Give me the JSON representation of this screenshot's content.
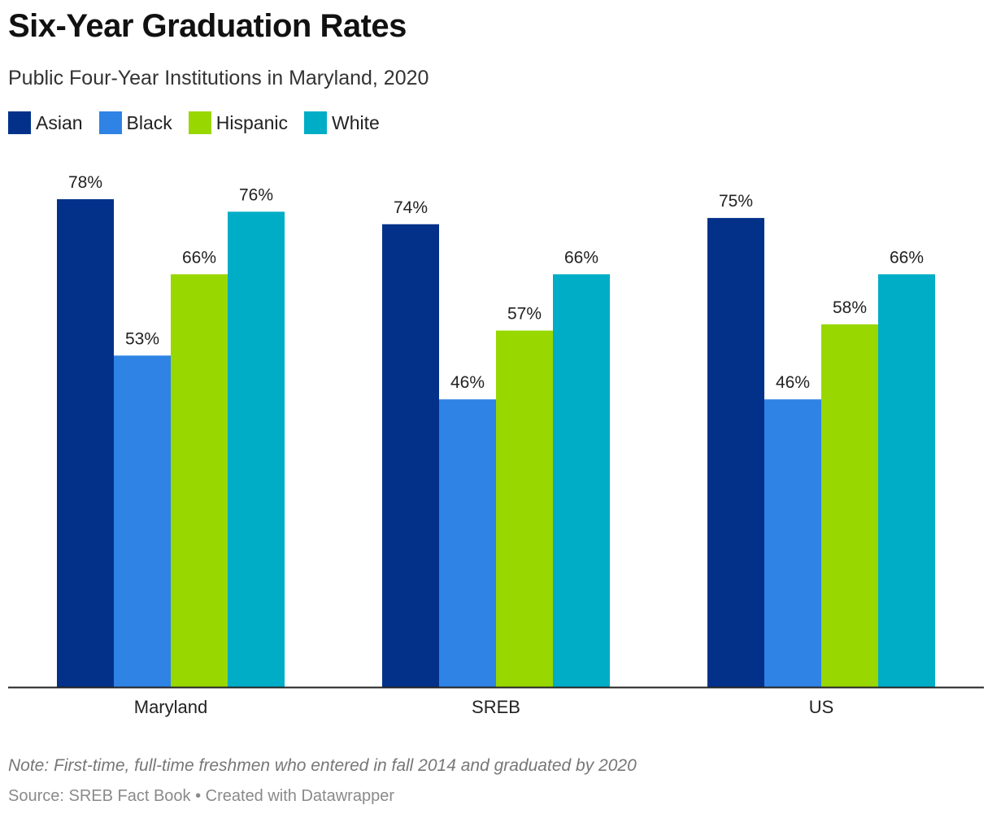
{
  "chart_data": {
    "type": "bar",
    "title": "Six-Year Graduation Rates",
    "subtitle": "Public Four-Year Institutions in Maryland, 2020",
    "categories": [
      "Maryland",
      "SREB",
      "US"
    ],
    "series": [
      {
        "name": "Asian",
        "color": "#03318a",
        "values": [
          78,
          74,
          75
        ],
        "labels": [
          "78%",
          "74%",
          "75%"
        ]
      },
      {
        "name": "Black",
        "color": "#2e83e5",
        "values": [
          53,
          46,
          46
        ],
        "labels": [
          "53%",
          "46%",
          "46%"
        ]
      },
      {
        "name": "Hispanic",
        "color": "#98d700",
        "values": [
          66,
          57,
          58
        ],
        "labels": [
          "66%",
          "57%",
          "58%"
        ]
      },
      {
        "name": "White",
        "color": "#00adc6",
        "values": [
          76,
          66,
          66
        ],
        "labels": [
          "76%",
          "66%",
          "66%"
        ]
      }
    ],
    "ylim": [
      0,
      78
    ],
    "xlabel": "",
    "ylabel": "",
    "grid": false,
    "legend": "top-left"
  },
  "footer": {
    "note": "Note: First-time, full-time freshmen who entered in fall 2014 and graduated by 2020",
    "source": "Source: SREB Fact Book • Created with Datawrapper"
  }
}
